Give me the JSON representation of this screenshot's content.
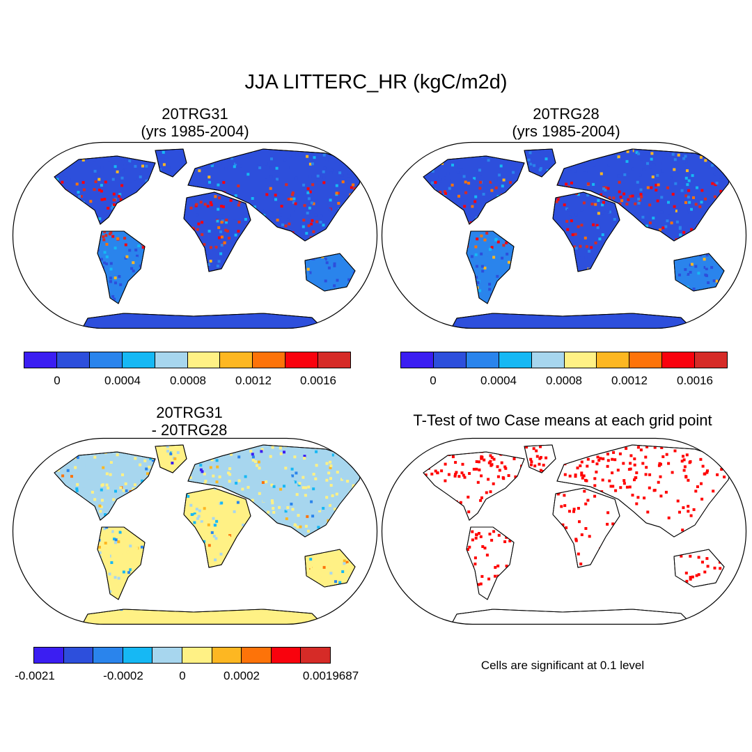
{
  "title": "JJA LITTERC_HR (kgC/m2d)",
  "panels": {
    "top_left": {
      "title_line1": "20TRG31",
      "title_line2": "(yrs 1985-2004)"
    },
    "top_right": {
      "title_line1": "20TRG28",
      "title_line2": "(yrs 1985-2004)"
    },
    "bottom_left": {
      "title_line1": "20TRG31",
      "title_line2": "- 20TRG28"
    },
    "bottom_right": {
      "title": "T-Test of two Case means at each grid point",
      "note": "Cells are significant at 0.1 level"
    }
  },
  "colorbars": {
    "mean": {
      "colors": [
        "#3b1ef2",
        "#2d4fdc",
        "#2a84ec",
        "#16b8f4",
        "#a7d6ee",
        "#fff185",
        "#fdb722",
        "#fd7309",
        "#f9020d",
        "#d62b27"
      ],
      "tick_labels": [
        "0",
        "0.0004",
        "0.0008",
        "0.0012",
        "0.0016"
      ]
    },
    "diff": {
      "colors": [
        "#3b1ef2",
        "#2d4fdc",
        "#2a84ec",
        "#16b8f4",
        "#a7d6ee",
        "#fff185",
        "#fdb722",
        "#fd7309",
        "#f9020d",
        "#d62b27"
      ],
      "tick_labels": [
        "-0.0021",
        "-0.0002",
        "0",
        "0.0002",
        "0.0019687"
      ]
    }
  },
  "significance_color": "#ff0000"
}
